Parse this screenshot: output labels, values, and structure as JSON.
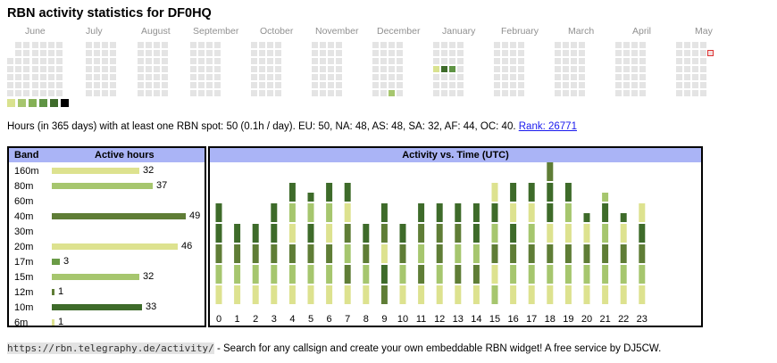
{
  "title": "RBN activity statistics for DF0HQ",
  "months": [
    "June",
    "July",
    "August",
    "September",
    "October",
    "November",
    "December",
    "January",
    "February",
    "March",
    "April",
    "May"
  ],
  "heatmap": {
    "weeks": 53,
    "active_days": [
      {
        "week": 29,
        "day": 6,
        "level": 2
      },
      {
        "week": 31,
        "day": 3,
        "level": 1
      },
      {
        "week": 32,
        "day": 3,
        "level": 5
      },
      {
        "week": 33,
        "day": 3,
        "level": 4
      }
    ],
    "current_day": {
      "week": 58,
      "day": 1
    }
  },
  "legend_colors": [
    "#d9e28f",
    "#a6c66e",
    "#85b156",
    "#5f9444",
    "#3e6b2a",
    "#000000"
  ],
  "summary": {
    "text": "Hours (in 365 days) with at least one RBN spot: 50 (0.1h / day). EU: 50, NA: 48, AS: 48, SA: 32, AF: 44, OC: 40.",
    "rank_link": "Rank: 26771"
  },
  "bands": {
    "header_band": "Band",
    "header_hours": "Active hours",
    "max": 49,
    "rows": [
      {
        "band": "160m",
        "hours": 32,
        "label": "32",
        "color": "#dde28f"
      },
      {
        "band": "80m",
        "hours": 37,
        "label": "37",
        "color": "#a6c66e"
      },
      {
        "band": "60m",
        "hours": 0,
        "label": "",
        "color": "#a6c66e"
      },
      {
        "band": "40m",
        "hours": 49,
        "label": "49",
        "color": "#5f7d36"
      },
      {
        "band": "30m",
        "hours": 0,
        "label": "",
        "color": "#a6c66e"
      },
      {
        "band": "20m",
        "hours": 46,
        "label": "46",
        "color": "#dde28f"
      },
      {
        "band": "17m",
        "hours": 3,
        "label": "3",
        "color": "#6a9b46"
      },
      {
        "band": "15m",
        "hours": 32,
        "label": "32",
        "color": "#a6c66e"
      },
      {
        "band": "12m",
        "hours": 1,
        "label": "1",
        "color": "#5f7d36"
      },
      {
        "band": "10m",
        "hours": 33,
        "label": "33",
        "color": "#3e6b2a"
      },
      {
        "band": "6m",
        "hours": 1,
        "label": "1",
        "color": "#dde28f"
      }
    ]
  },
  "chart_data": {
    "type": "bar",
    "title": "Activity vs. Time (UTC)",
    "categories": [
      "0",
      "1",
      "2",
      "3",
      "4",
      "5",
      "6",
      "7",
      "8",
      "9",
      "10",
      "11",
      "12",
      "13",
      "14",
      "15",
      "16",
      "17",
      "18",
      "19",
      "20",
      "21",
      "22",
      "23"
    ],
    "series_colors": [
      "#dde28f",
      "#a6c66e",
      "#5f7d36",
      "#3e6b2a"
    ],
    "stacks": [
      [
        0,
        1,
        2,
        3,
        3
      ],
      [
        0,
        1,
        2,
        3
      ],
      [
        0,
        1,
        2,
        3
      ],
      [
        0,
        1,
        2,
        3,
        3
      ],
      [
        0,
        1,
        2,
        0,
        1,
        3
      ],
      [
        0,
        1,
        2,
        3,
        1,
        3
      ],
      [
        0,
        1,
        2,
        0,
        1,
        3
      ],
      [
        0,
        2,
        1,
        2,
        0,
        3
      ],
      [
        0,
        1,
        2,
        3
      ],
      [
        2,
        3,
        0,
        2,
        3
      ],
      [
        0,
        1,
        2,
        3
      ],
      [
        0,
        2,
        1,
        2,
        3
      ],
      [
        0,
        1,
        2,
        2,
        3
      ],
      [
        0,
        2,
        1,
        2,
        3
      ],
      [
        0,
        2,
        1,
        3,
        3
      ],
      [
        1,
        0,
        2,
        1,
        3,
        0
      ],
      [
        0,
        1,
        2,
        3,
        0,
        3
      ],
      [
        0,
        1,
        2,
        1,
        0,
        3
      ],
      [
        0,
        1,
        2,
        0,
        3,
        3,
        2
      ],
      [
        0,
        1,
        2,
        0,
        1,
        3
      ],
      [
        0,
        1,
        2,
        0,
        3
      ],
      [
        0,
        1,
        2,
        1,
        3,
        1
      ],
      [
        0,
        1,
        2,
        0,
        3
      ],
      [
        0,
        1,
        2,
        3,
        0
      ]
    ]
  },
  "footer": {
    "url": "https://rbn.telegraphy.de/activity/",
    "text": " - Search for any callsign and create your own embeddable RBN widget! A free service by DJ5CW."
  }
}
